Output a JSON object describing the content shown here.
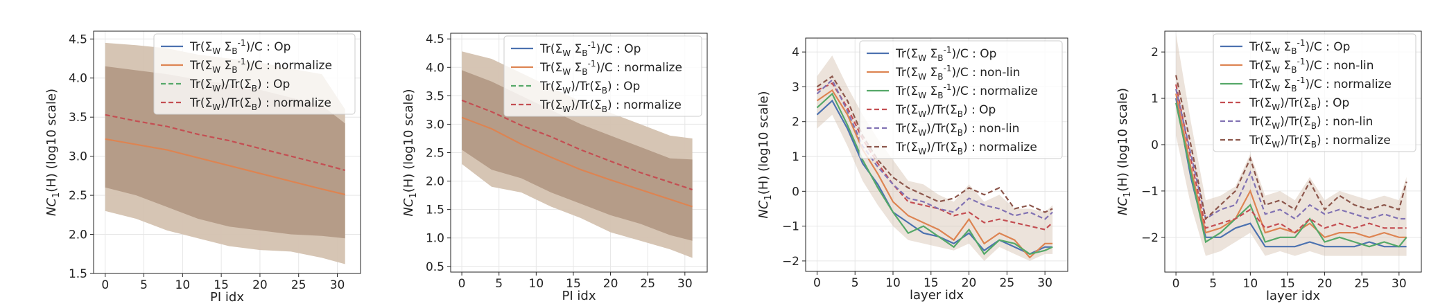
{
  "figure": {
    "description_free": true
  },
  "colors": {
    "op": "#4c72b0",
    "nonlin": "#dd8452",
    "normalize": "#55a868",
    "r_op": "#c44e52",
    "r_nonlin": "#8172b3",
    "r_normalize": "#8c564b",
    "band_dark": "#b39a86",
    "band_light": "#d4c2b0"
  },
  "chart_data": [
    {
      "type": "line",
      "xlabel": "PI idx",
      "ylabel": "NC1(H) (log10 scale)",
      "xlim": [
        -1.5,
        33
      ],
      "ylim": [
        1.5,
        4.6
      ],
      "xticks": [
        "0",
        "5",
        "10",
        "15",
        "20",
        "25",
        "30"
      ],
      "yticks": [
        "1.5",
        "2.0",
        "2.5",
        "3.0",
        "3.5",
        "4.0",
        "4.5"
      ],
      "legend_position": "top-right",
      "legend": [
        "Tr(Σ_W Σ_B^{-1})/C : Op",
        "Tr(Σ_W Σ_B^{-1})/C : normalize",
        "Tr(Σ_W)/Tr(Σ_B) : Op",
        "Tr(Σ_W)/Tr(Σ_B) : normalize"
      ],
      "x": [
        0,
        4,
        8,
        12,
        16,
        20,
        24,
        28,
        31
      ],
      "series": [
        {
          "name": "Tr(Σ_W Σ_B^{-1})/C : normalize",
          "color_key": "nonlin",
          "dash": false,
          "values": [
            3.22,
            3.15,
            3.08,
            2.98,
            2.88,
            2.78,
            2.68,
            2.58,
            2.51
          ]
        },
        {
          "name": "Tr(Σ_W)/Tr(Σ_B) : normalize",
          "color_key": "r_op",
          "dash": true,
          "values": [
            3.53,
            3.45,
            3.38,
            3.28,
            3.2,
            3.1,
            3.0,
            2.9,
            2.82
          ]
        }
      ],
      "bands": [
        {
          "upper": [
            4.45,
            4.42,
            4.38,
            4.3,
            4.25,
            4.2,
            4.12,
            4.05,
            3.6
          ],
          "lower": [
            2.3,
            2.2,
            2.05,
            1.95,
            1.85,
            1.8,
            1.78,
            1.7,
            1.62
          ],
          "color_key": "band_light"
        },
        {
          "upper": [
            4.15,
            4.1,
            4.05,
            3.98,
            3.92,
            3.85,
            3.75,
            3.65,
            3.42
          ],
          "lower": [
            2.6,
            2.5,
            2.35,
            2.2,
            2.1,
            2.05,
            2.0,
            1.98,
            1.95
          ],
          "color_key": "band_dark"
        }
      ]
    },
    {
      "type": "line",
      "xlabel": "PI idx",
      "ylabel": "NC1(H) (log10 scale)",
      "xlim": [
        -1.5,
        33
      ],
      "ylim": [
        0.4,
        4.6
      ],
      "xticks": [
        "0",
        "5",
        "10",
        "15",
        "20",
        "25",
        "30"
      ],
      "yticks": [
        "0.5",
        "1.0",
        "1.5",
        "2.0",
        "2.5",
        "3.0",
        "3.5",
        "4.0",
        "4.5"
      ],
      "legend_position": "top-right",
      "legend": [
        "Tr(Σ_W Σ_B^{-1})/C : Op",
        "Tr(Σ_W Σ_B^{-1})/C : normalize",
        "Tr(Σ_W)/Tr(Σ_B) : Op",
        "Tr(Σ_W)/Tr(Σ_B) : normalize"
      ],
      "x": [
        0,
        4,
        8,
        12,
        16,
        20,
        24,
        28,
        31
      ],
      "series": [
        {
          "name": "Tr(Σ_W Σ_B^{-1})/C : normalize",
          "color_key": "nonlin",
          "dash": false,
          "values": [
            3.12,
            2.92,
            2.65,
            2.42,
            2.2,
            2.02,
            1.85,
            1.68,
            1.55
          ]
        },
        {
          "name": "Tr(Σ_W)/Tr(Σ_B) : normalize",
          "color_key": "r_op",
          "dash": true,
          "values": [
            3.42,
            3.22,
            2.98,
            2.78,
            2.55,
            2.35,
            2.15,
            1.98,
            1.85
          ]
        }
      ],
      "bands": [
        {
          "upper": [
            4.28,
            4.15,
            3.9,
            3.65,
            3.4,
            3.2,
            3.0,
            2.8,
            2.75
          ],
          "lower": [
            2.3,
            1.9,
            1.8,
            1.55,
            1.35,
            1.1,
            0.95,
            0.8,
            0.65
          ],
          "color_key": "band_light"
        },
        {
          "upper": [
            3.95,
            3.75,
            3.5,
            3.25,
            3.0,
            2.8,
            2.6,
            2.4,
            2.38
          ],
          "lower": [
            2.55,
            2.2,
            2.05,
            1.8,
            1.6,
            1.4,
            1.25,
            1.05,
            0.95
          ],
          "color_key": "band_dark"
        }
      ]
    },
    {
      "type": "line",
      "xlabel": "layer idx",
      "ylabel": "NC1(H) (log10 scale)",
      "xlim": [
        -1.5,
        33
      ],
      "ylim": [
        -2.3,
        4.4
      ],
      "xticks": [
        "0",
        "5",
        "10",
        "15",
        "20",
        "25",
        "30"
      ],
      "yticks": [
        "−2",
        "−1",
        "0",
        "1",
        "2",
        "3",
        "4"
      ],
      "legend_position": "top-right",
      "legend": [
        "Tr(Σ_W Σ_B^{-1})/C : Op",
        "Tr(Σ_W Σ_B^{-1})/C : non-lin",
        "Tr(Σ_W Σ_B^{-1})/C : normalize",
        "Tr(Σ_W)/Tr(Σ_B) : Op",
        "Tr(Σ_W)/Tr(Σ_B) : non-lin",
        "Tr(Σ_W)/Tr(Σ_B) : normalize"
      ],
      "x": [
        0,
        2,
        4,
        6,
        8,
        10,
        12,
        14,
        16,
        18,
        20,
        22,
        24,
        26,
        28,
        30,
        31
      ],
      "series": [
        {
          "name": "Tr(Σ_W Σ_B^{-1})/C : Op",
          "color_key": "op",
          "dash": false,
          "values": [
            2.2,
            2.6,
            1.8,
            0.8,
            0.2,
            -0.6,
            -0.9,
            -1.2,
            -1.3,
            -1.5,
            -1.2,
            -1.7,
            -1.4,
            -1.6,
            -1.8,
            -1.6,
            -1.6
          ]
        },
        {
          "name": "Tr(Σ_W Σ_B^{-1})/C : non-lin",
          "color_key": "nonlin",
          "dash": false,
          "values": [
            2.6,
            2.9,
            2.2,
            1.2,
            0.5,
            -0.3,
            -0.7,
            -0.9,
            -1.1,
            -1.4,
            -0.8,
            -1.5,
            -1.2,
            -1.4,
            -1.9,
            -1.5,
            -1.5
          ]
        },
        {
          "name": "Tr(Σ_W Σ_B^{-1})/C : normalize",
          "color_key": "normalize",
          "dash": false,
          "values": [
            2.4,
            2.8,
            1.9,
            0.9,
            0.1,
            -0.6,
            -1.2,
            -1.0,
            -1.3,
            -1.6,
            -1.1,
            -1.8,
            -1.4,
            -1.5,
            -1.8,
            -1.7,
            -1.6
          ]
        },
        {
          "name": "Tr(Σ_W)/Tr(Σ_B) : Op",
          "color_key": "r_op",
          "dash": true,
          "values": [
            2.9,
            3.1,
            2.4,
            1.5,
            0.8,
            0.2,
            -0.3,
            -0.4,
            -0.5,
            -0.7,
            -0.6,
            -0.9,
            -0.8,
            -0.9,
            -1.0,
            -1.1,
            -0.9
          ]
        },
        {
          "name": "Tr(Σ_W)/Tr(Σ_B) : non-lin",
          "color_key": "r_nonlin",
          "dash": true,
          "values": [
            2.8,
            3.2,
            2.3,
            1.3,
            0.7,
            0.2,
            -0.2,
            -0.3,
            -0.5,
            -0.6,
            -0.2,
            -0.4,
            -0.5,
            -0.7,
            -0.6,
            -0.8,
            -0.6
          ]
        },
        {
          "name": "Tr(Σ_W)/Tr(Σ_B) : normalize",
          "color_key": "r_normalize",
          "dash": true,
          "values": [
            3.0,
            3.3,
            2.6,
            1.6,
            0.9,
            0.4,
            0.1,
            -0.1,
            -0.3,
            -0.2,
            0.1,
            -0.1,
            0.1,
            -0.5,
            -0.4,
            -0.6,
            -0.5
          ]
        }
      ],
      "bands": [
        {
          "upper": [
            3.3,
            3.9,
            3.0,
            2.2,
            1.5,
            0.9,
            0.3,
            0.2,
            -0.1,
            -0.3,
            0.2,
            -0.3,
            -0.1,
            -0.5,
            -0.5,
            -0.6,
            -0.4
          ],
          "lower": [
            1.8,
            2.2,
            1.3,
            0.3,
            -0.4,
            -1.0,
            -1.4,
            -1.5,
            -1.6,
            -1.7,
            -1.5,
            -2.0,
            -1.6,
            -1.8,
            -2.0,
            -1.8,
            -1.8
          ],
          "color_key": "band_light"
        }
      ]
    },
    {
      "type": "line",
      "xlabel": "layer idx",
      "ylabel": "NC1(H) (log10 scale)",
      "xlim": [
        -1.5,
        33
      ],
      "ylim": [
        -2.75,
        2.45
      ],
      "xticks": [
        "0",
        "5",
        "10",
        "15",
        "20",
        "25",
        "30"
      ],
      "yticks": [
        "−2",
        "−1",
        "0",
        "1",
        "2"
      ],
      "legend_position": "top-right",
      "legend": [
        "Tr(Σ_W Σ_B^{-1})/C : Op",
        "Tr(Σ_W Σ_B^{-1})/C : non-lin",
        "Tr(Σ_W Σ_B^{-1})/C : normalize",
        "Tr(Σ_W)/Tr(Σ_B) : Op",
        "Tr(Σ_W)/Tr(Σ_B) : non-lin",
        "Tr(Σ_W)/Tr(Σ_B) : normalize"
      ],
      "x": [
        0,
        2,
        4,
        6,
        8,
        10,
        12,
        14,
        16,
        18,
        20,
        22,
        24,
        26,
        28,
        30,
        31
      ],
      "series": [
        {
          "name": "Tr(Σ_W Σ_B^{-1})/C : Op",
          "color_key": "op",
          "dash": false,
          "values": [
            1.0,
            -0.7,
            -2.0,
            -2.0,
            -1.8,
            -1.7,
            -2.2,
            -2.2,
            -2.2,
            -2.1,
            -2.2,
            -2.2,
            -2.2,
            -2.1,
            -2.2,
            -2.2,
            -2.2
          ]
        },
        {
          "name": "Tr(Σ_W Σ_B^{-1})/C : non-lin",
          "color_key": "nonlin",
          "dash": false,
          "values": [
            1.1,
            -0.5,
            -1.9,
            -1.8,
            -1.6,
            -1.0,
            -1.9,
            -1.8,
            -1.9,
            -1.7,
            -2.0,
            -1.9,
            -1.9,
            -2.0,
            -1.9,
            -2.0,
            -2.0
          ]
        },
        {
          "name": "Tr(Σ_W Σ_B^{-1})/C : normalize",
          "color_key": "normalize",
          "dash": false,
          "values": [
            0.9,
            -0.6,
            -2.1,
            -1.9,
            -1.6,
            -1.3,
            -2.1,
            -2.0,
            -2.0,
            -1.6,
            -2.1,
            -2.0,
            -2.1,
            -2.2,
            -2.1,
            -2.2,
            -2.0
          ]
        },
        {
          "name": "Tr(Σ_W)/Tr(Σ_B) : Op",
          "color_key": "r_op",
          "dash": true,
          "values": [
            1.3,
            -0.3,
            -1.8,
            -1.7,
            -1.6,
            -1.4,
            -1.8,
            -1.7,
            -1.9,
            -1.6,
            -1.8,
            -1.7,
            -1.8,
            -1.7,
            -1.8,
            -1.8,
            -1.8
          ]
        },
        {
          "name": "Tr(Σ_W)/Tr(Σ_B) : non-lin",
          "color_key": "r_nonlin",
          "dash": true,
          "values": [
            1.2,
            -0.2,
            -1.6,
            -1.4,
            -1.3,
            -0.6,
            -1.5,
            -1.4,
            -1.6,
            -1.3,
            -1.5,
            -1.4,
            -1.5,
            -1.6,
            -1.5,
            -1.6,
            -1.6
          ]
        },
        {
          "name": "Tr(Σ_W)/Tr(Σ_B) : normalize",
          "color_key": "r_normalize",
          "dash": true,
          "values": [
            1.5,
            0.0,
            -1.6,
            -1.3,
            -1.0,
            -0.3,
            -1.3,
            -1.2,
            -1.4,
            -0.8,
            -1.4,
            -1.1,
            -1.3,
            -1.4,
            -1.3,
            -1.4,
            -0.8
          ]
        }
      ],
      "bands": [
        {
          "upper": [
            2.4,
            0.5,
            -1.2,
            -1.1,
            -0.9,
            -0.2,
            -1.1,
            -1.0,
            -1.2,
            -0.7,
            -1.2,
            -1.0,
            -1.1,
            -1.2,
            -1.1,
            -1.2,
            -0.7
          ],
          "lower": [
            0.2,
            -1.3,
            -2.4,
            -2.3,
            -2.1,
            -1.9,
            -2.4,
            -2.3,
            -2.4,
            -2.3,
            -2.4,
            -2.4,
            -2.4,
            -2.4,
            -2.4,
            -2.4,
            -2.4
          ],
          "color_key": "band_light"
        }
      ]
    }
  ]
}
